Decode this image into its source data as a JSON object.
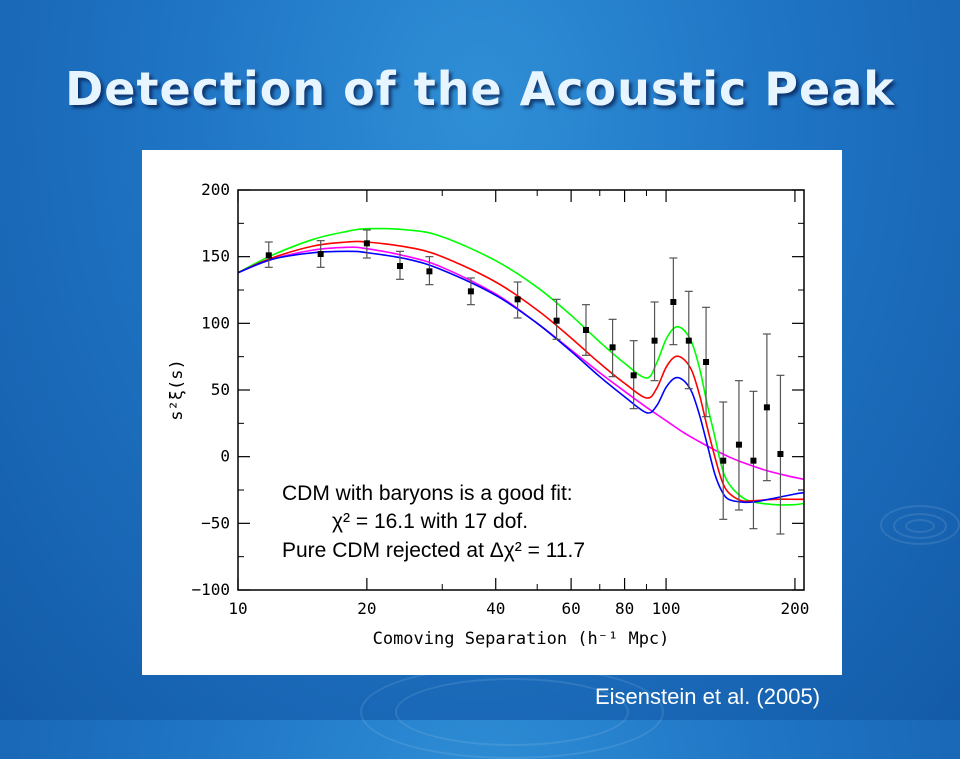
{
  "slide": {
    "title": "Detection of the Acoustic Peak",
    "credit": "Eisenstein et al. (2005)"
  },
  "chart_data": {
    "type": "scatter",
    "xlabel": "Comoving Separation (h⁻¹ Mpc)",
    "ylabel": "s²ξ(s)",
    "xscale": "log",
    "xlim": [
      10,
      210
    ],
    "ylim": [
      -100,
      200
    ],
    "xticks": [
      10,
      20,
      40,
      60,
      80,
      100,
      200
    ],
    "yticks": [
      200,
      150,
      100,
      50,
      0,
      -50,
      -100
    ],
    "ytick_labels": [
      "200",
      "150",
      "100",
      "50",
      "0",
      "−50",
      "−100"
    ],
    "grid": false,
    "annotation": [
      "CDM with baryons is a good fit:",
      "χ² = 16.1 with 17 dof.",
      "Pure CDM rejected at Δχ² = 11.7"
    ],
    "points": [
      {
        "x": 11.8,
        "y": 151,
        "lo": 142,
        "hi": 161
      },
      {
        "x": 15.6,
        "y": 152,
        "lo": 142,
        "hi": 162
      },
      {
        "x": 20.0,
        "y": 160,
        "lo": 149,
        "hi": 170
      },
      {
        "x": 23.9,
        "y": 143,
        "lo": 133,
        "hi": 154
      },
      {
        "x": 28.0,
        "y": 139,
        "lo": 129,
        "hi": 150
      },
      {
        "x": 35.0,
        "y": 124,
        "lo": 114,
        "hi": 134
      },
      {
        "x": 45.0,
        "y": 118,
        "lo": 104,
        "hi": 131
      },
      {
        "x": 55.5,
        "y": 102,
        "lo": 88,
        "hi": 118
      },
      {
        "x": 65.0,
        "y": 95,
        "lo": 76,
        "hi": 114
      },
      {
        "x": 75.0,
        "y": 82,
        "lo": 60,
        "hi": 103
      },
      {
        "x": 84.0,
        "y": 61,
        "lo": 36,
        "hi": 87
      },
      {
        "x": 94.0,
        "y": 87,
        "lo": 57,
        "hi": 116
      },
      {
        "x": 104.0,
        "y": 116,
        "lo": 84,
        "hi": 149
      },
      {
        "x": 113.0,
        "y": 87,
        "lo": 51,
        "hi": 124
      },
      {
        "x": 124.0,
        "y": 71,
        "lo": 30,
        "hi": 112
      },
      {
        "x": 136.0,
        "y": -3,
        "lo": -47,
        "hi": 41
      },
      {
        "x": 148.0,
        "y": 9,
        "lo": -40,
        "hi": 57
      },
      {
        "x": 160.0,
        "y": -3,
        "lo": -54,
        "hi": 49
      },
      {
        "x": 172.0,
        "y": 37,
        "lo": -18,
        "hi": 92
      },
      {
        "x": 185.0,
        "y": 2,
        "lo": -58,
        "hi": 61
      }
    ],
    "series": [
      {
        "color": "#ff00ff",
        "x": [
          10,
          12,
          15,
          18,
          20,
          25,
          30,
          40,
          50,
          60,
          70,
          80,
          90,
          100,
          110,
          120,
          130,
          140,
          150,
          170,
          190,
          210
        ],
        "y": [
          138,
          148,
          155,
          157,
          156,
          150,
          142,
          122,
          100,
          80,
          63,
          49,
          37,
          27,
          18,
          11,
          5,
          0,
          -4,
          -10,
          -14,
          -17
        ]
      },
      {
        "color": "#00ff00",
        "x": [
          10,
          12,
          15,
          18,
          20,
          25,
          30,
          40,
          50,
          60,
          70,
          80,
          90,
          95,
          100,
          105,
          110,
          115,
          120,
          125,
          130,
          135,
          140,
          150,
          160,
          180,
          200,
          210
        ],
        "y": [
          138,
          151,
          163,
          169,
          171,
          170,
          165,
          147,
          127,
          106,
          86,
          70,
          59,
          70,
          88,
          97,
          95,
          85,
          65,
          38,
          15,
          -8,
          -20,
          -30,
          -34,
          -36,
          -36,
          -35
        ]
      },
      {
        "color": "#ff0000",
        "x": [
          10,
          12,
          15,
          18,
          20,
          25,
          30,
          40,
          50,
          60,
          70,
          80,
          90,
          95,
          100,
          105,
          110,
          115,
          120,
          125,
          130,
          135,
          140,
          150,
          160,
          180,
          200,
          210
        ],
        "y": [
          138,
          149,
          158,
          161,
          161,
          157,
          150,
          131,
          110,
          89,
          70,
          55,
          44,
          51,
          67,
          75,
          73,
          64,
          45,
          21,
          0,
          -18,
          -27,
          -33,
          -33,
          -32,
          -32,
          -32
        ]
      },
      {
        "color": "#0000ff",
        "x": [
          10,
          12,
          15,
          18,
          20,
          25,
          30,
          40,
          50,
          60,
          70,
          80,
          90,
          95,
          100,
          105,
          110,
          115,
          120,
          125,
          130,
          135,
          140,
          150,
          160,
          180,
          200,
          210
        ],
        "y": [
          138,
          148,
          153,
          154,
          153,
          148,
          140,
          121,
          100,
          79,
          60,
          45,
          33,
          38,
          52,
          59,
          57,
          48,
          30,
          8,
          -13,
          -26,
          -32,
          -34,
          -34,
          -31,
          -28,
          -27
        ]
      }
    ]
  }
}
